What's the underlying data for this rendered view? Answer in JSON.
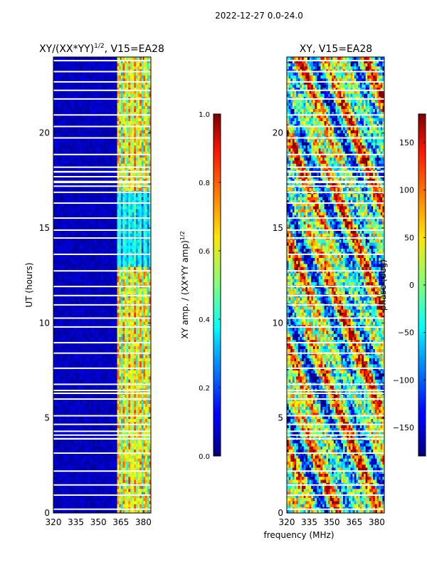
{
  "suptitle": "2022-12-27 0.0-24.0",
  "shared_xlabel": "frequency (MHz)",
  "chart_data": [
    {
      "type": "heatmap",
      "title": "XY/(XX*YY)",
      "title_sup": "1/2",
      "title_suffix": ", V15=EA28",
      "xlabel": "",
      "ylabel": "UT (hours)",
      "xlim": [
        320,
        385
      ],
      "ylim": [
        0,
        24
      ],
      "xticks": [
        "320",
        "335",
        "350",
        "365",
        "380"
      ],
      "xtick_values": [
        320,
        335,
        350,
        365,
        380
      ],
      "yticks": [
        "0",
        "5",
        "10",
        "15",
        "20"
      ],
      "ytick_values": [
        0,
        5,
        10,
        15,
        20
      ],
      "colorbar": {
        "label": "XY amp. / (XX*YY amp)",
        "label_sup": "1/2",
        "range": [
          0.0,
          1.0
        ],
        "ticks": [
          "0.0",
          "0.2",
          "0.4",
          "0.6",
          "0.8",
          "1.0"
        ],
        "tick_values": [
          0.0,
          0.2,
          0.4,
          0.6,
          0.8,
          1.0
        ],
        "colormap": "jet"
      }
    },
    {
      "type": "heatmap",
      "title": "XY, V15=EA28",
      "xlabel": "frequency (MHz)",
      "ylabel": "",
      "xlim": [
        320,
        385
      ],
      "ylim": [
        0,
        24
      ],
      "xticks": [
        "320",
        "335",
        "350",
        "365",
        "380"
      ],
      "xtick_values": [
        320,
        335,
        350,
        365,
        380
      ],
      "yticks": [
        "0",
        "5",
        "10",
        "15",
        "20"
      ],
      "ytick_values": [
        0,
        5,
        10,
        15,
        20
      ],
      "colorbar": {
        "label": "phase (deg)",
        "range": [
          -180,
          180
        ],
        "ticks": [
          "−150",
          "−100",
          "−50",
          "0",
          "50",
          "100",
          "150"
        ],
        "tick_values": [
          -150,
          -100,
          -50,
          0,
          50,
          100,
          150
        ],
        "colormap": "jet"
      }
    }
  ]
}
